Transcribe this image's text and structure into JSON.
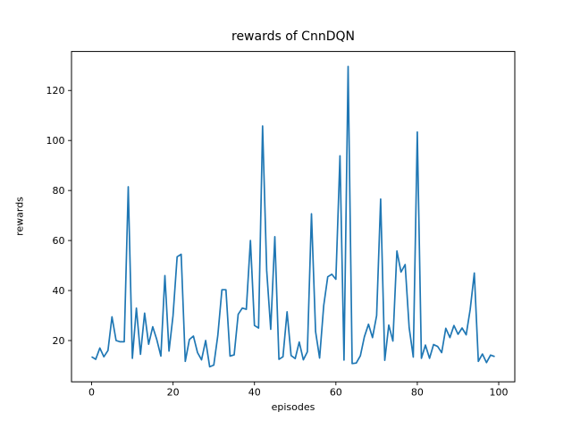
{
  "figure": {
    "title": "rewards of CnnDQN",
    "xlabel": "episodes",
    "ylabel": "rewards"
  },
  "chart_data": {
    "type": "line",
    "title": "rewards of CnnDQN",
    "xlabel": "episodes",
    "ylabel": "rewards",
    "x_start": 0,
    "x_step": 1,
    "n_points": 100,
    "values": [
      13.5,
      12.5,
      17,
      13.5,
      16,
      29.5,
      20,
      19.5,
      19.5,
      81.5,
      12.9,
      33,
      14.5,
      31,
      18.5,
      25.5,
      20.4,
      13.8,
      46,
      15.8,
      30,
      53.5,
      54.5,
      11.7,
      20.4,
      21.8,
      15.2,
      12.3,
      20,
      9.5,
      10.2,
      22,
      40.3,
      40.3,
      13.8,
      14.3,
      30.5,
      33,
      32.5,
      60,
      26,
      25,
      105.8,
      48,
      24.5,
      61.5,
      12.5,
      13.5,
      31.5,
      14,
      12.8,
      19.4,
      12.3,
      15.5,
      70.7,
      23.6,
      13,
      34,
      45.5,
      46.5,
      44.5,
      93.9,
      12.2,
      129.6,
      10.8,
      11,
      13.9,
      21.5,
      26.5,
      21.2,
      30,
      76.6,
      12.1,
      26.2,
      19.8,
      55.8,
      47.4,
      50.4,
      25.2,
      13.4,
      103.4,
      12.9,
      18.2,
      12.9,
      18.4,
      17.6,
      15.2,
      24.9,
      21.2,
      26,
      22.5,
      25,
      22.3,
      32.5,
      47,
      11.7,
      14.6,
      11.2,
      14.2,
      13.6
    ],
    "xlim": [
      -4.95,
      103.95
    ],
    "ylim": [
      3.5,
      135.6
    ],
    "xticks": [
      0,
      20,
      40,
      60,
      80,
      100
    ],
    "yticks": [
      20,
      40,
      60,
      80,
      100,
      120
    ],
    "grid": false,
    "legend": "none",
    "line_color": "#1f77b4",
    "line_width": 1.7,
    "spine_color": "#000000",
    "background": "#ffffff"
  }
}
